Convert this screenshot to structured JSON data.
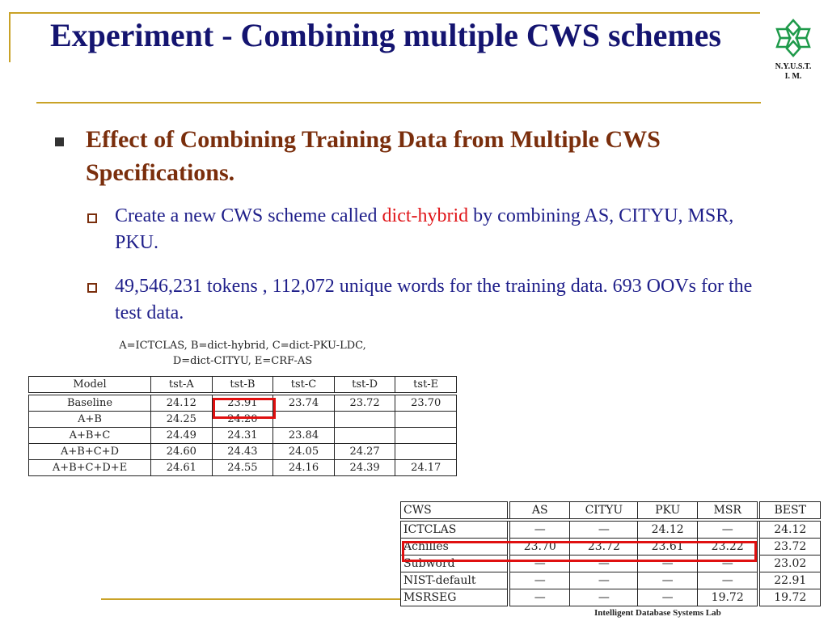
{
  "title": "Experiment - Combining multiple CWS schemes",
  "logo": {
    "line1": "N.Y.U.S.T.",
    "line2": "I. M."
  },
  "bullet": {
    "heading": "Effect of Combining Training Data from Multiple CWS Specifications.",
    "items": [
      {
        "before": "Create a new CWS scheme called ",
        "highlight": "dict-hybrid",
        "after": " by combining AS, CITYU, MSR, PKU."
      },
      {
        "before": "49,546,231 tokens , 112,072 unique words for the training data. 693 OOVs for the test data.",
        "highlight": "",
        "after": ""
      }
    ]
  },
  "table1": {
    "caption1": "A=ICTCLAS, B=dict-hybrid, C=dict-PKU-LDC,",
    "caption2": "D=dict-CITYU, E=CRF-AS",
    "headers": [
      "Model",
      "tst-A",
      "tst-B",
      "tst-C",
      "tst-D",
      "tst-E"
    ],
    "rows": [
      [
        "Baseline",
        "24.12",
        "23.91",
        "23.74",
        "23.72",
        "23.70"
      ],
      [
        "A+B",
        "24.25",
        "24.20",
        "",
        "",
        ""
      ],
      [
        "A+B+C",
        "24.49",
        "24.31",
        "23.84",
        "",
        ""
      ],
      [
        "A+B+C+D",
        "24.60",
        "24.43",
        "24.05",
        "24.27",
        ""
      ],
      [
        "A+B+C+D+E",
        "24.61",
        "24.55",
        "24.16",
        "24.39",
        "24.17"
      ]
    ]
  },
  "table2": {
    "headers": [
      "CWS",
      "AS",
      "CITYU",
      "PKU",
      "MSR",
      "BEST"
    ],
    "rows": [
      [
        "ICTCLAS",
        "—",
        "—",
        "24.12",
        "—",
        "24.12"
      ],
      [
        "Achilles",
        "23.70",
        "23.72",
        "23.61",
        "23.22",
        "23.72"
      ],
      [
        "Subword",
        "—",
        "—",
        "—",
        "—",
        "23.02"
      ],
      [
        "NIST-default",
        "—",
        "—",
        "—",
        "—",
        "22.91"
      ],
      [
        "MSRSEG",
        "—",
        "—",
        "—",
        "19.72",
        "19.72"
      ]
    ]
  },
  "footer": "Intelligent Database Systems Lab",
  "colors": {
    "accent": "#c9a227",
    "title": "#141470",
    "heading": "#7a2e0c",
    "highlight": "#e0161a"
  }
}
